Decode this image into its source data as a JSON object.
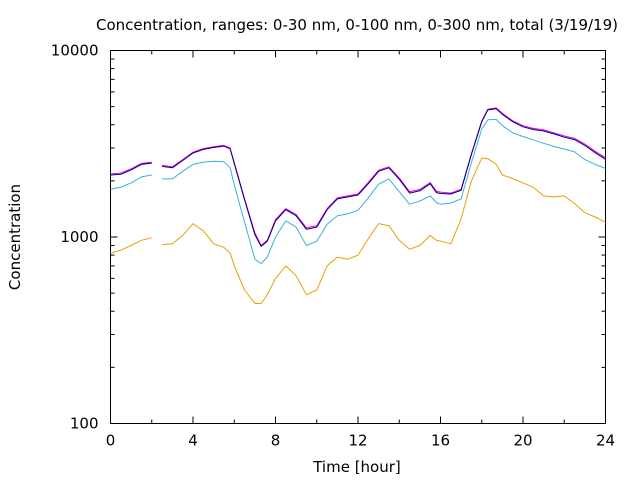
{
  "chart_data": {
    "type": "line",
    "title": "Concentration, ranges: 0-30 nm, 0-100 nm, 0-300 nm, total (3/19/19)",
    "xlabel": "Time [hour]",
    "ylabel": "Concentration",
    "xlim": [
      0,
      24
    ],
    "ylim": [
      100,
      10000
    ],
    "y_scale": "log",
    "grid": false,
    "legend": "none",
    "x_ticks": [
      0,
      4,
      8,
      12,
      16,
      20,
      24
    ],
    "x_tick_labels": [
      "0",
      "4",
      "8",
      "12",
      "16",
      "20",
      "24"
    ],
    "y_ticks": [
      100,
      1000,
      10000
    ],
    "y_tick_labels": [
      "100",
      "1000",
      "10000"
    ],
    "x": [
      0,
      0.5,
      1,
      1.5,
      2,
      2.2,
      2.5,
      3,
      3.5,
      4,
      4.5,
      5,
      5.5,
      5.8,
      6,
      6.5,
      7,
      7.3,
      7.6,
      8,
      8.5,
      9,
      9.5,
      10,
      10.5,
      11,
      11.5,
      12,
      12.5,
      13,
      13.5,
      14,
      14.5,
      15,
      15.5,
      15.8,
      16,
      16.5,
      17,
      17.5,
      18,
      18.3,
      18.7,
      19,
      19.5,
      20,
      20.5,
      21,
      21.5,
      22,
      22.5,
      23,
      23.5,
      24
    ],
    "series": [
      {
        "color": "#e8a000",
        "values": [
          820,
          850,
          900,
          960,
          990,
          null,
          910,
          920,
          1020,
          1180,
          1080,
          920,
          880,
          820,
          700,
          520,
          440,
          440,
          490,
          600,
          700,
          620,
          490,
          520,
          700,
          780,
          760,
          800,
          980,
          1180,
          1150,
          960,
          860,
          900,
          1020,
          960,
          950,
          920,
          1250,
          2000,
          2650,
          2630,
          2450,
          2150,
          2060,
          1950,
          1850,
          1660,
          1640,
          1660,
          1510,
          1350,
          1280,
          1200
        ]
      },
      {
        "color": "#3ab0e0",
        "values": [
          1800,
          1850,
          1950,
          2100,
          2150,
          null,
          2050,
          2050,
          2250,
          2450,
          2520,
          2550,
          2530,
          2350,
          1900,
          1200,
          760,
          720,
          780,
          1000,
          1220,
          1130,
          900,
          950,
          1170,
          1300,
          1330,
          1390,
          1620,
          1920,
          2050,
          1750,
          1500,
          1560,
          1660,
          1530,
          1500,
          1520,
          1600,
          2500,
          3800,
          4250,
          4270,
          3950,
          3620,
          3460,
          3320,
          3180,
          3060,
          2960,
          2860,
          2600,
          2450,
          2330
        ]
      },
      {
        "color": "#e800e8",
        "values": [
          2180,
          2200,
          2320,
          2480,
          2520,
          null,
          2420,
          2380,
          2600,
          2850,
          2980,
          3050,
          3100,
          3000,
          2500,
          1600,
          1050,
          900,
          960,
          1240,
          1420,
          1320,
          1120,
          1150,
          1420,
          1620,
          1660,
          1700,
          1960,
          2280,
          2380,
          2070,
          1750,
          1800,
          1960,
          1760,
          1740,
          1720,
          1800,
          2800,
          4200,
          4850,
          4920,
          4600,
          4200,
          3950,
          3820,
          3750,
          3620,
          3480,
          3380,
          3150,
          2880,
          2660
        ]
      },
      {
        "color": "#000080",
        "values": [
          2150,
          2170,
          2290,
          2450,
          2490,
          null,
          2390,
          2350,
          2570,
          2820,
          2950,
          3020,
          3070,
          2970,
          2470,
          1580,
          1030,
          890,
          950,
          1220,
          1400,
          1300,
          1100,
          1130,
          1400,
          1600,
          1640,
          1680,
          1930,
          2250,
          2350,
          2040,
          1720,
          1770,
          1930,
          1730,
          1710,
          1700,
          1780,
          2770,
          4150,
          4800,
          4870,
          4550,
          4150,
          3900,
          3770,
          3700,
          3570,
          3430,
          3330,
          3100,
          2830,
          2610
        ]
      }
    ]
  }
}
